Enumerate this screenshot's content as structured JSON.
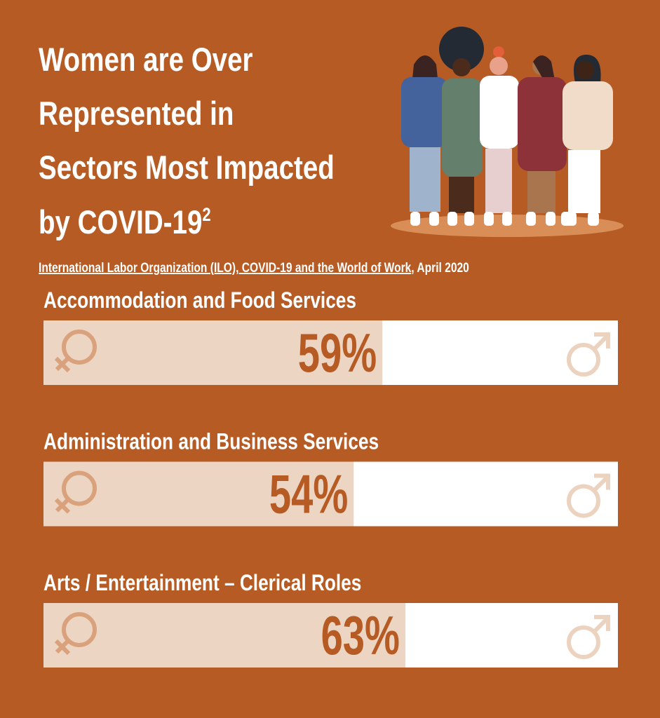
{
  "chart_data": {
    "type": "bar",
    "title": [
      "Women are Over",
      "Represented in",
      "Sectors Most Impacted",
      "by COVID-19"
    ],
    "title_superscript": "2",
    "source": {
      "link": "International Labor Organization (ILO), COVID-19 and the World of Work",
      "date": ", April 2020"
    },
    "categories": [
      "Accommodation and Food Services",
      "Administration and Business Services",
      "Arts / Entertainment – Clerical Roles"
    ],
    "values": [
      59,
      54,
      63
    ],
    "value_labels": [
      "59%",
      "54%",
      "63%"
    ],
    "xlim": [
      0,
      100
    ],
    "color": "#edd5c3",
    "rest_color": "#ffffff",
    "background": "#b65b24",
    "label_color": "#b65b24"
  }
}
